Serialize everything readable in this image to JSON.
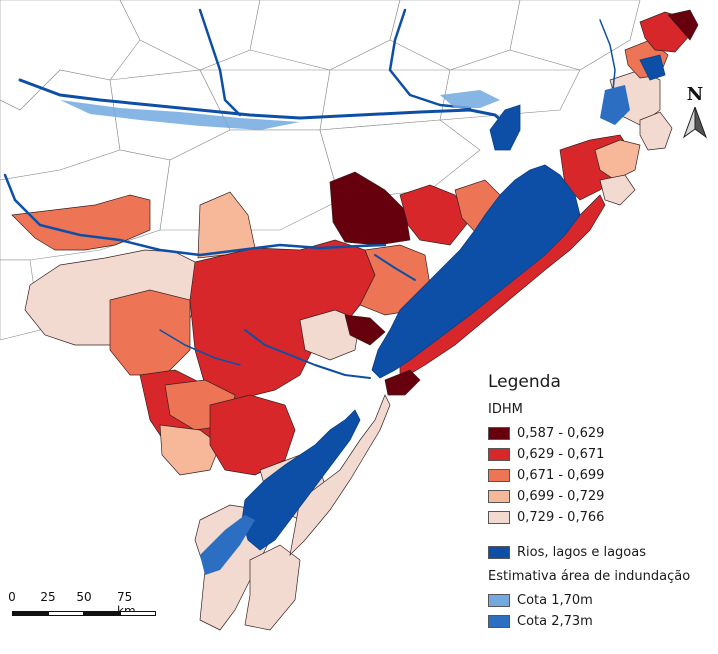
{
  "legend": {
    "title": "Legenda",
    "idhm_title": "IDHM",
    "classes": [
      {
        "label": "0,587 - 0,629",
        "color": "#67000d"
      },
      {
        "label": "0,629 - 0,671",
        "color": "#d7272b"
      },
      {
        "label": "0,671 - 0,699",
        "color": "#ee7456"
      },
      {
        "label": "0,699 - 0,729",
        "color": "#f7b799"
      },
      {
        "label": "0,729 - 0,766",
        "color": "#f2dad0"
      }
    ],
    "water_label": "Rios, lagos e lagoas",
    "water_color": "#0d4fa6",
    "flood_title": "Estimativa área de indundação",
    "flood_classes": [
      {
        "label": "Cota 1,70m",
        "color": "#73a9df"
      },
      {
        "label": "Cota 2,73m",
        "color": "#2c6fc2"
      }
    ]
  },
  "north_arrow": {
    "label": "N"
  },
  "scale_bar": {
    "labels": [
      "0",
      "25",
      "50",
      "75 km"
    ]
  }
}
